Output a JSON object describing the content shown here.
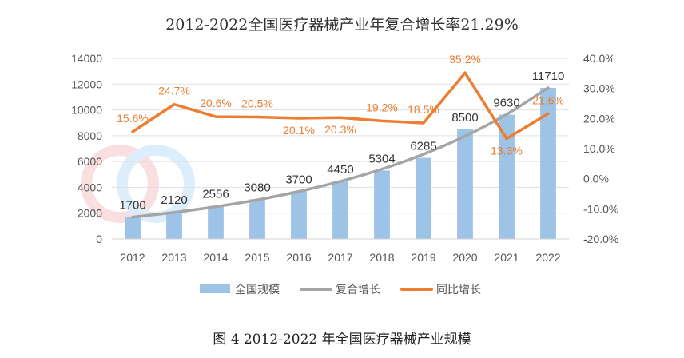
{
  "chart_data": {
    "type": "bar",
    "title": "2012-2022全国医疗器械产业年复合增长率21.29%",
    "categories": [
      "2012",
      "2013",
      "2014",
      "2015",
      "2016",
      "2017",
      "2018",
      "2019",
      "2020",
      "2021",
      "2022"
    ],
    "series": [
      {
        "name": "全国规模",
        "type": "bar",
        "axis": "left",
        "values": [
          1700,
          2120,
          2556,
          3080,
          3700,
          4450,
          5304,
          6285,
          8500,
          9630,
          11710
        ],
        "labels": [
          "1700",
          "2120",
          "2556",
          "3080",
          "3700",
          "4450",
          "5304",
          "6285",
          "8500",
          "9630",
          "11710"
        ]
      },
      {
        "name": "复合增长",
        "type": "line",
        "axis": "left",
        "values": [
          1700,
          2062,
          2501,
          3033,
          3679,
          4462,
          5412,
          6564,
          7962,
          9657,
          11713
        ]
      },
      {
        "name": "同比增长",
        "type": "line",
        "axis": "right",
        "values": [
          15.6,
          24.7,
          20.6,
          20.5,
          20.1,
          20.3,
          19.2,
          18.5,
          35.2,
          13.3,
          21.6
        ],
        "labels": [
          "15.6%",
          "24.7%",
          "20.6%",
          "20.5%",
          "20.1%",
          "20.3%",
          "19.2%",
          "18.5%",
          "35.2%",
          "13.3%",
          "21.6%"
        ]
      }
    ],
    "y_left": {
      "ylim": [
        0,
        14000
      ],
      "ticks": [
        "0",
        "2000",
        "4000",
        "6000",
        "8000",
        "10000",
        "12000",
        "14000"
      ]
    },
    "y_right": {
      "ylim": [
        -20,
        40
      ],
      "ticks": [
        "-20.0%",
        "-10.0%",
        "0.0%",
        "10.0%",
        "20.0%",
        "30.0%",
        "40.0%"
      ]
    },
    "legend_position": "bottom",
    "colors": {
      "bar": "#9DC3E6",
      "cagr_line": "#A5A5A5",
      "yoy_line": "#ED7D31"
    }
  },
  "caption": "图 4 2012-2022 年全国医疗器械产业规模"
}
